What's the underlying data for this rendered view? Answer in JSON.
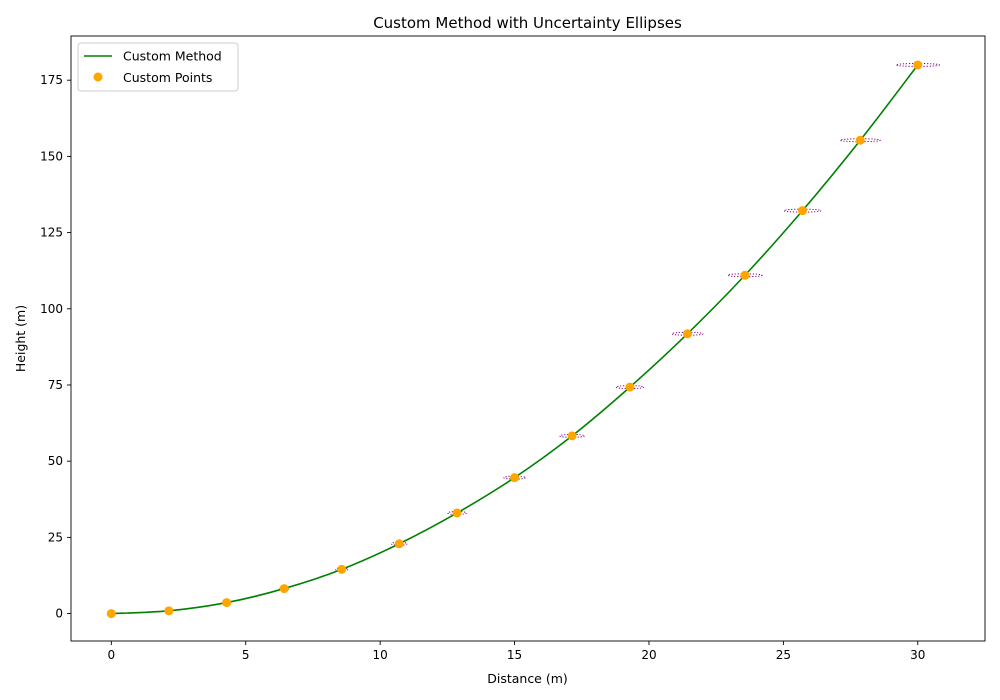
{
  "chart_data": {
    "type": "line",
    "title": "Custom Method with Uncertainty Ellipses",
    "xlabel": "Distance (m)",
    "ylabel": "Height (m)",
    "xlim": [
      -1.5,
      32.5
    ],
    "ylim": [
      -9,
      189.5
    ],
    "xticks": [
      0,
      5,
      10,
      15,
      20,
      25,
      30
    ],
    "yticks": [
      0,
      25,
      50,
      75,
      100,
      125,
      150,
      175
    ],
    "grid": false,
    "legend_placement": "top-left",
    "series": [
      {
        "name": "Custom Method",
        "kind": "line",
        "color": "#008000",
        "x": [
          0,
          2.14,
          4.29,
          6.43,
          8.57,
          10.71,
          12.86,
          15.0,
          17.14,
          19.29,
          21.43,
          23.57,
          25.71,
          27.86,
          30.0
        ],
        "y": [
          0,
          0.9,
          3.6,
          8.2,
          14.5,
          22.9,
          33.0,
          44.6,
          58.3,
          74.3,
          91.8,
          111.0,
          132.2,
          155.3,
          180.0
        ]
      },
      {
        "name": "Custom Points",
        "kind": "scatter",
        "color": "#ffa500",
        "x": [
          0,
          2.14,
          4.29,
          6.43,
          8.57,
          10.71,
          12.86,
          15.0,
          17.14,
          19.29,
          21.43,
          23.57,
          25.71,
          27.86,
          30.0
        ],
        "y": [
          0,
          0.9,
          3.6,
          8.2,
          14.5,
          22.9,
          33.0,
          44.6,
          58.3,
          74.3,
          91.8,
          111.0,
          132.2,
          155.3,
          180.0
        ]
      }
    ],
    "ellipses": {
      "color": "#800080",
      "style": "dotted",
      "centers_x": [
        0,
        2.14,
        4.29,
        6.43,
        8.57,
        10.71,
        12.86,
        15.0,
        17.14,
        19.29,
        21.43,
        23.57,
        25.71,
        27.86,
        30.0
      ],
      "centers_y": [
        0,
        0.9,
        3.6,
        8.2,
        14.5,
        22.9,
        33.0,
        44.6,
        58.3,
        74.3,
        91.8,
        111.0,
        132.2,
        155.3,
        180.0
      ],
      "x_halfwidths": [
        0.0,
        0.06,
        0.12,
        0.17,
        0.23,
        0.29,
        0.35,
        0.4,
        0.46,
        0.52,
        0.58,
        0.64,
        0.69,
        0.75,
        0.81
      ],
      "y_halfwidths": [
        0.0,
        0.03,
        0.06,
        0.1,
        0.13,
        0.16,
        0.19,
        0.22,
        0.26,
        0.29,
        0.32,
        0.35,
        0.39,
        0.42,
        0.45
      ]
    }
  }
}
